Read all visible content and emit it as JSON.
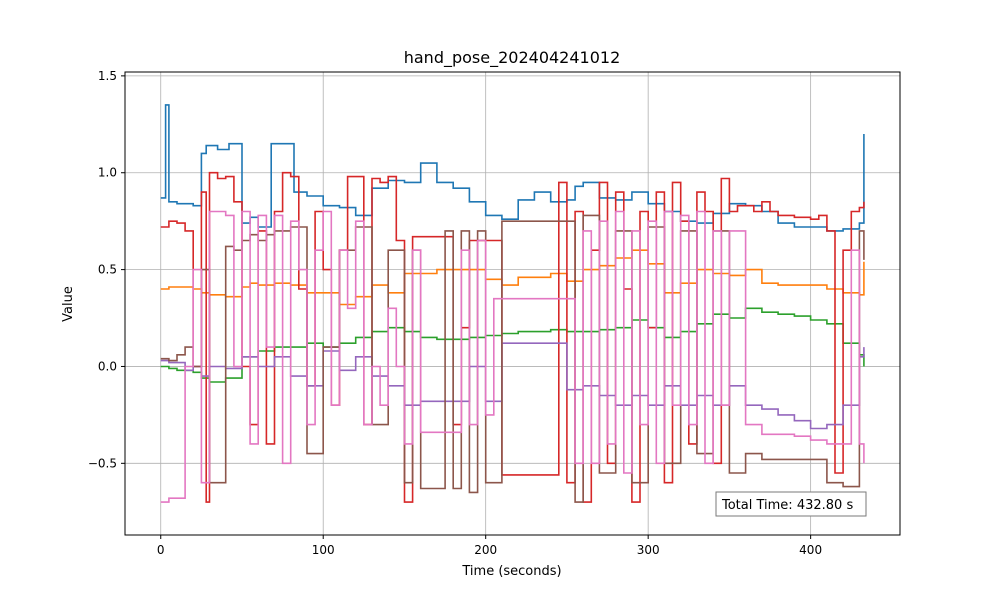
{
  "chart_data": {
    "type": "line",
    "title": "hand_pose_202404241012",
    "xlabel": "Time (seconds)",
    "ylabel": "Value",
    "xlim": [
      -22,
      455
    ],
    "ylim": [
      -0.87,
      1.52
    ],
    "xticks": [
      0,
      100,
      200,
      300,
      400
    ],
    "yticks": [
      -0.5,
      0.0,
      0.5,
      1.0,
      1.5
    ],
    "ytick_labels": [
      "−0.5",
      "0.0",
      "0.5",
      "1.0",
      "1.5"
    ],
    "grid": true,
    "legend": "none",
    "annotation": {
      "text": "Total Time: 432.80 s",
      "position": "bottom-right"
    },
    "series": [
      {
        "color": "#1f77b4",
        "x": [
          0,
          3,
          5,
          10,
          20,
          25,
          28,
          35,
          42,
          50,
          55,
          60,
          68,
          75,
          82,
          90,
          100,
          110,
          120,
          125,
          130,
          140,
          150,
          160,
          170,
          180,
          190,
          200,
          210,
          220,
          230,
          240,
          250,
          255,
          260,
          270,
          280,
          290,
          300,
          310,
          320,
          330,
          340,
          350,
          360,
          370,
          380,
          390,
          400,
          410,
          420,
          430,
          432.8
        ],
        "y": [
          0.87,
          1.35,
          0.85,
          0.84,
          0.83,
          1.1,
          1.14,
          1.12,
          1.15,
          0.74,
          0.77,
          0.72,
          1.15,
          1.15,
          0.9,
          0.88,
          0.83,
          0.82,
          0.78,
          0.78,
          0.92,
          0.96,
          0.95,
          1.05,
          0.95,
          0.92,
          0.85,
          0.78,
          0.76,
          0.86,
          0.9,
          0.85,
          0.86,
          0.93,
          0.95,
          0.87,
          0.86,
          0.9,
          0.84,
          0.8,
          0.75,
          0.74,
          0.79,
          0.84,
          0.83,
          0.8,
          0.74,
          0.72,
          0.72,
          0.7,
          0.71,
          0.74,
          1.2
        ]
      },
      {
        "color": "#ff7f0e",
        "x": [
          0,
          5,
          10,
          20,
          25,
          30,
          40,
          50,
          55,
          60,
          70,
          80,
          90,
          100,
          110,
          120,
          130,
          140,
          150,
          160,
          170,
          180,
          190,
          200,
          210,
          220,
          230,
          240,
          250,
          260,
          270,
          280,
          290,
          300,
          310,
          320,
          330,
          340,
          350,
          360,
          370,
          380,
          390,
          400,
          410,
          420,
          430,
          432.8
        ],
        "y": [
          0.4,
          0.41,
          0.41,
          0.4,
          0.38,
          0.37,
          0.36,
          0.41,
          0.43,
          0.42,
          0.43,
          0.42,
          0.38,
          0.38,
          0.32,
          0.36,
          0.42,
          0.38,
          0.48,
          0.48,
          0.5,
          0.5,
          0.5,
          0.45,
          0.42,
          0.46,
          0.46,
          0.48,
          0.44,
          0.5,
          0.52,
          0.56,
          0.6,
          0.53,
          0.38,
          0.43,
          0.5,
          0.48,
          0.47,
          0.5,
          0.43,
          0.42,
          0.42,
          0.42,
          0.4,
          0.38,
          0.37,
          0.54
        ]
      },
      {
        "color": "#2ca02c",
        "x": [
          0,
          5,
          10,
          20,
          25,
          30,
          40,
          50,
          60,
          70,
          80,
          90,
          100,
          110,
          120,
          130,
          140,
          150,
          160,
          170,
          180,
          190,
          200,
          210,
          220,
          230,
          240,
          250,
          260,
          270,
          280,
          290,
          300,
          310,
          320,
          330,
          340,
          350,
          360,
          370,
          380,
          390,
          400,
          410,
          420,
          430,
          432.8
        ],
        "y": [
          0.0,
          -0.01,
          -0.02,
          -0.03,
          -0.06,
          -0.08,
          -0.06,
          0.05,
          0.08,
          0.1,
          0.1,
          0.12,
          0.1,
          0.12,
          0.15,
          0.18,
          0.2,
          0.18,
          0.15,
          0.14,
          0.14,
          0.15,
          0.16,
          0.17,
          0.18,
          0.18,
          0.19,
          0.18,
          0.18,
          0.19,
          0.2,
          0.24,
          0.2,
          0.15,
          0.18,
          0.22,
          0.27,
          0.25,
          0.3,
          0.28,
          0.27,
          0.26,
          0.24,
          0.22,
          0.12,
          0.06,
          0.0
        ]
      },
      {
        "color": "#d62728",
        "x": [
          0,
          5,
          10,
          15,
          20,
          25,
          28,
          30,
          35,
          40,
          45,
          50,
          55,
          60,
          65,
          70,
          75,
          80,
          85,
          90,
          95,
          100,
          105,
          110,
          115,
          120,
          125,
          130,
          135,
          140,
          145,
          150,
          155,
          160,
          165,
          170,
          175,
          180,
          185,
          190,
          195,
          200,
          205,
          210,
          215,
          220,
          230,
          240,
          245,
          250,
          255,
          260,
          265,
          270,
          275,
          280,
          285,
          290,
          295,
          300,
          305,
          310,
          315,
          320,
          325,
          330,
          335,
          340,
          345,
          350,
          355,
          360,
          365,
          370,
          375,
          380,
          385,
          390,
          395,
          400,
          405,
          410,
          415,
          420,
          425,
          430,
          432.8
        ],
        "y": [
          0.72,
          0.75,
          0.74,
          0.7,
          0.0,
          0.9,
          -0.7,
          1.0,
          0.97,
          0.98,
          0.85,
          0.0,
          -0.3,
          0.7,
          -0.4,
          0.8,
          1.0,
          0.98,
          0.4,
          -0.1,
          0.8,
          0.5,
          -0.2,
          0.6,
          0.98,
          0.98,
          -0.3,
          0.97,
          0.95,
          0.98,
          0.65,
          -0.7,
          0.67,
          0.67,
          0.67,
          0.67,
          0.67,
          -0.3,
          0.2,
          0.65,
          0.65,
          0.65,
          0.65,
          -0.56,
          -0.56,
          -0.56,
          -0.56,
          -0.56,
          0.95,
          -0.6,
          0.8,
          -0.7,
          0.6,
          0.95,
          -0.5,
          0.9,
          0.4,
          -0.7,
          0.8,
          0.2,
          0.9,
          -0.6,
          0.95,
          0.75,
          -0.4,
          0.9,
          0.8,
          -0.5,
          0.97,
          0.8,
          0.83,
          0.83,
          0.8,
          0.85,
          0.8,
          0.78,
          0.78,
          0.77,
          0.77,
          0.76,
          0.78,
          0.7,
          -0.55,
          0.6,
          0.8,
          0.82,
          0.85
        ]
      },
      {
        "color": "#9467bd",
        "x": [
          0,
          5,
          10,
          15,
          20,
          25,
          30,
          40,
          50,
          60,
          70,
          80,
          90,
          100,
          110,
          120,
          130,
          140,
          150,
          160,
          170,
          180,
          190,
          200,
          210,
          220,
          230,
          240,
          250,
          260,
          270,
          280,
          290,
          300,
          310,
          320,
          330,
          340,
          350,
          360,
          370,
          380,
          390,
          400,
          410,
          420,
          430,
          432.8
        ],
        "y": [
          0.03,
          0.02,
          0.02,
          -0.02,
          0.0,
          -0.05,
          0.0,
          -0.01,
          0.05,
          0.0,
          0.05,
          -0.05,
          -0.1,
          0.08,
          -0.02,
          0.05,
          -0.05,
          -0.1,
          -0.2,
          -0.18,
          -0.18,
          -0.18,
          0.0,
          -0.18,
          0.12,
          0.12,
          0.12,
          0.12,
          -0.12,
          -0.1,
          -0.15,
          -0.2,
          -0.15,
          -0.2,
          -0.1,
          -0.2,
          -0.15,
          -0.2,
          -0.1,
          -0.2,
          -0.22,
          -0.25,
          -0.28,
          -0.32,
          -0.3,
          -0.2,
          0.05,
          0.1
        ]
      },
      {
        "color": "#8c564b",
        "x": [
          0,
          5,
          10,
          15,
          20,
          25,
          30,
          40,
          45,
          50,
          55,
          60,
          65,
          70,
          80,
          90,
          100,
          110,
          120,
          130,
          140,
          150,
          155,
          160,
          170,
          175,
          180,
          185,
          190,
          195,
          200,
          210,
          220,
          230,
          240,
          250,
          255,
          260,
          270,
          280,
          290,
          300,
          310,
          320,
          330,
          340,
          350,
          360,
          370,
          380,
          390,
          400,
          410,
          420,
          430,
          432.8
        ],
        "y": [
          0.04,
          0.03,
          0.06,
          0.1,
          0.0,
          0.5,
          -0.6,
          0.62,
          0.6,
          0.65,
          0.68,
          0.65,
          0.68,
          0.7,
          0.72,
          -0.45,
          0.1,
          0.6,
          0.72,
          -0.3,
          0.6,
          -0.6,
          0.6,
          -0.63,
          -0.63,
          0.7,
          -0.63,
          0.7,
          -0.65,
          0.7,
          -0.6,
          0.75,
          0.75,
          0.75,
          0.75,
          0.75,
          -0.7,
          0.78,
          -0.55,
          0.7,
          -0.6,
          0.72,
          -0.5,
          0.7,
          -0.45,
          0.7,
          -0.55,
          -0.45,
          -0.48,
          -0.48,
          -0.48,
          -0.48,
          -0.6,
          -0.62,
          0.7,
          0.55
        ]
      },
      {
        "color": "#e377c2",
        "x": [
          0,
          5,
          10,
          15,
          20,
          25,
          30,
          40,
          45,
          50,
          55,
          60,
          65,
          70,
          75,
          80,
          85,
          90,
          95,
          100,
          105,
          110,
          115,
          120,
          125,
          130,
          135,
          140,
          145,
          150,
          155,
          160,
          170,
          180,
          185,
          190,
          195,
          200,
          205,
          210,
          220,
          230,
          240,
          250,
          255,
          260,
          265,
          270,
          275,
          280,
          285,
          290,
          295,
          300,
          305,
          310,
          315,
          320,
          325,
          330,
          335,
          340,
          345,
          350,
          360,
          370,
          380,
          390,
          400,
          410,
          420,
          425,
          430,
          432.8
        ],
        "y": [
          -0.7,
          -0.68,
          -0.68,
          0.0,
          0.5,
          -0.6,
          0.8,
          0.78,
          0.0,
          0.8,
          -0.4,
          0.78,
          0.1,
          0.78,
          -0.5,
          0.75,
          0.5,
          -0.3,
          0.6,
          0.8,
          -0.2,
          0.6,
          0.3,
          0.75,
          -0.3,
          0.0,
          -0.2,
          0.3,
          0.0,
          -0.4,
          0.6,
          -0.34,
          -0.34,
          -0.34,
          0.6,
          -0.3,
          0.65,
          -0.25,
          0.35,
          0.35,
          0.35,
          0.35,
          0.35,
          0.35,
          -0.5,
          0.7,
          -0.5,
          0.75,
          -0.4,
          0.8,
          -0.55,
          0.7,
          -0.3,
          0.75,
          -0.5,
          0.8,
          -0.2,
          0.78,
          -0.3,
          0.8,
          -0.5,
          0.7,
          -0.2,
          0.7,
          -0.3,
          -0.35,
          -0.35,
          -0.36,
          -0.38,
          -0.4,
          -0.4,
          0.6,
          -0.4,
          -0.5
        ]
      }
    ]
  }
}
